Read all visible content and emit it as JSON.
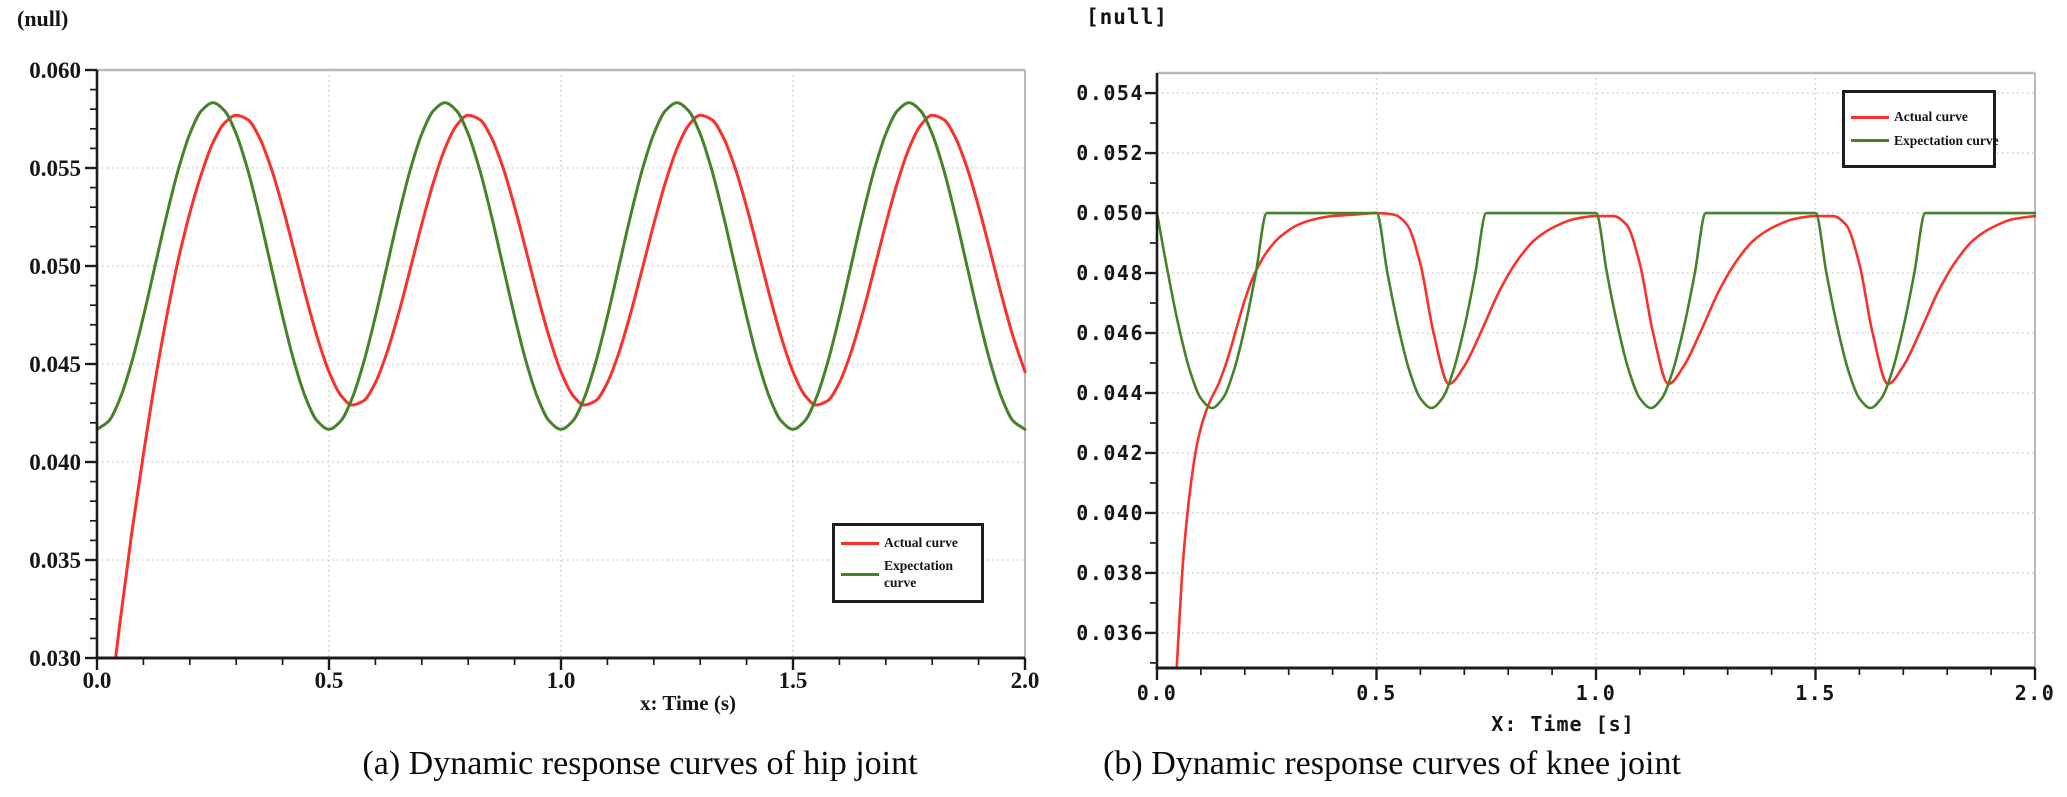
{
  "colors": {
    "actual": "#f8322b",
    "expectation": "#45832a",
    "grid": "#c8c8c8",
    "border": "#b9b9b9",
    "axis": "#1c1c1c",
    "text": "#151515"
  },
  "chart_data": [
    {
      "id": "hip",
      "type": "line",
      "title": "(null)",
      "xlabel": "x: Time (s)",
      "ylabel": "",
      "caption": "(a) Dynamic response curves of hip joint",
      "xlim": [
        0,
        2
      ],
      "ylim": [
        0.03,
        0.06
      ],
      "grid": "dotted",
      "x_ticks": {
        "values": [
          0,
          0.5,
          1.0,
          1.5,
          2.0
        ],
        "labels": [
          "0.0",
          "0.5",
          "1.0",
          "1.5",
          "2.0"
        ]
      },
      "y_ticks": {
        "values": [
          0.06,
          0.055,
          0.05,
          0.045,
          0.04,
          0.035,
          0.03
        ],
        "labels": [
          "0.060",
          "0.055",
          "0.050",
          "0.045",
          "0.040",
          "0.035",
          "0.030"
        ]
      },
      "x_minor_step": 0.1,
      "y_minor_step": 0.001,
      "legend": {
        "position": "bottom-right",
        "items": [
          {
            "label": "Actual curve"
          },
          {
            "label": "Expectation curve"
          }
        ]
      },
      "series": [
        {
          "name": "Actual curve",
          "colorKey": "actual",
          "points": [
            [
              0.04,
              0.03
            ],
            [
              0.05,
              0.0319
            ],
            [
              0.075,
              0.0364
            ],
            [
              0.1,
              0.0404
            ],
            [
              0.125,
              0.0441
            ],
            [
              0.15,
              0.0474
            ],
            [
              0.175,
              0.0503
            ],
            [
              0.2,
              0.0527
            ],
            [
              0.225,
              0.0547
            ],
            [
              0.25,
              0.0563
            ],
            [
              0.275,
              0.0573
            ]
          ],
          "x0": 0.3,
          "dx": 0.025,
          "y": [
            0.05769,
            0.05747,
            0.05655,
            0.05502,
            0.05302,
            0.05076,
            0.04846,
            0.04634,
            0.0446,
            0.04342,
            0.04291,
            0.04313,
            0.04405,
            0.04559,
            0.04758,
            0.04984,
            0.05214,
            0.05426,
            0.056,
            0.05718,
            0.05769,
            0.05747,
            0.05655,
            0.05502,
            0.05302,
            0.05076,
            0.04846,
            0.04634,
            0.0446,
            0.04342,
            0.04291,
            0.04313,
            0.04405,
            0.04559,
            0.04758,
            0.04984,
            0.05214,
            0.05426,
            0.056,
            0.05718,
            0.05769,
            0.05747,
            0.05655,
            0.05502,
            0.05302,
            0.05076,
            0.04846,
            0.04634,
            0.0446,
            0.04342,
            0.04291,
            0.04313,
            0.04405,
            0.04559,
            0.04758,
            0.04984,
            0.05214,
            0.05426,
            0.056,
            0.05718,
            0.05769,
            0.05747,
            0.05655,
            0.05502,
            0.05302,
            0.05076,
            0.04846,
            0.04634,
            0.0446
          ]
        },
        {
          "name": "Expectation curve",
          "colorKey": "expectation",
          "x0": 0,
          "dx": 0.025,
          "y": [
            0.04167,
            0.04208,
            0.04326,
            0.0451,
            0.04743,
            0.05,
            0.05257,
            0.0549,
            0.05674,
            0.05792,
            0.05833,
            0.05792,
            0.05674,
            0.0549,
            0.05257,
            0.05,
            0.04743,
            0.0451,
            0.04326,
            0.04208,
            0.04167,
            0.04208,
            0.04326,
            0.0451,
            0.04743,
            0.05,
            0.05257,
            0.0549,
            0.05674,
            0.05792,
            0.05833,
            0.05792,
            0.05674,
            0.0549,
            0.05257,
            0.05,
            0.04743,
            0.0451,
            0.04326,
            0.04208,
            0.04167,
            0.04208,
            0.04326,
            0.0451,
            0.04743,
            0.05,
            0.05257,
            0.0549,
            0.05674,
            0.05792,
            0.05833,
            0.05792,
            0.05674,
            0.0549,
            0.05257,
            0.05,
            0.04743,
            0.0451,
            0.04326,
            0.04208,
            0.04167,
            0.04208,
            0.04326,
            0.0451,
            0.04743,
            0.05,
            0.05257,
            0.0549,
            0.05674,
            0.05792,
            0.05833,
            0.05792,
            0.05674,
            0.0549,
            0.05257,
            0.05,
            0.04743,
            0.0451,
            0.04326,
            0.04208,
            0.04167
          ]
        }
      ]
    },
    {
      "id": "knee",
      "type": "line",
      "title": "[null]",
      "xlabel": "X: Time [s]",
      "ylabel": "",
      "caption": "(b) Dynamic response curves of knee joint",
      "xlim": [
        0,
        2
      ],
      "ylim": [
        0.03483,
        0.05467
      ],
      "grid": "dotted",
      "x_ticks": {
        "values": [
          0,
          0.5,
          1.0,
          1.5,
          2.0
        ],
        "labels": [
          "0.0",
          "0.5",
          "1.0",
          "1.5",
          "2.0"
        ]
      },
      "y_ticks": {
        "values": [
          0.054,
          0.052,
          0.05,
          0.048,
          0.046,
          0.044,
          0.042,
          0.04,
          0.038,
          0.036
        ],
        "labels": [
          "0.054",
          "0.052",
          "0.050",
          "0.048",
          "0.046",
          "0.044",
          "0.042",
          "0.040",
          "0.038",
          "0.036"
        ]
      },
      "x_minor_step": 0.1,
      "y_minor_step": 0.001,
      "legend": {
        "position": "top-right",
        "items": [
          {
            "label": "Actual curve"
          },
          {
            "label": "Expectation curve"
          }
        ]
      },
      "series": [
        {
          "name": "Actual curve",
          "colorKey": "actual",
          "points": [
            [
              0.045,
              0.0349
            ],
            [
              0.06,
              0.0385
            ],
            [
              0.075,
              0.0407
            ],
            [
              0.09,
              0.0422
            ],
            [
              0.105,
              0.0431
            ],
            [
              0.12,
              0.0437
            ],
            [
              0.14,
              0.0443
            ],
            [
              0.16,
              0.0451
            ],
            [
              0.18,
              0.0461
            ],
            [
              0.2,
              0.0471
            ],
            [
              0.22,
              0.0479
            ],
            [
              0.25,
              0.0487
            ],
            [
              0.28,
              0.0492
            ],
            [
              0.32,
              0.0496
            ],
            [
              0.36,
              0.0498
            ],
            [
              0.4,
              0.0499
            ],
            [
              0.45,
              0.04995
            ],
            [
              0.5,
              0.05
            ],
            [
              0.54,
              0.04995
            ],
            [
              0.57,
              0.0496
            ],
            [
              0.6,
              0.0483
            ],
            [
              0.63,
              0.046
            ],
            [
              0.665,
              0.0443
            ],
            [
              0.7,
              0.0449
            ],
            [
              0.74,
              0.0461
            ],
            [
              0.78,
              0.0474
            ],
            [
              0.82,
              0.0484
            ],
            [
              0.86,
              0.0491
            ],
            [
              0.9,
              0.0495
            ],
            [
              0.95,
              0.0498
            ],
            [
              1.0,
              0.0499
            ],
            [
              1.04,
              0.0499
            ],
            [
              1.07,
              0.0496
            ],
            [
              1.1,
              0.0483
            ],
            [
              1.13,
              0.046
            ],
            [
              1.165,
              0.0443
            ],
            [
              1.2,
              0.0449
            ],
            [
              1.24,
              0.0461
            ],
            [
              1.28,
              0.0474
            ],
            [
              1.32,
              0.0484
            ],
            [
              1.36,
              0.0491
            ],
            [
              1.4,
              0.0495
            ],
            [
              1.45,
              0.0498
            ],
            [
              1.5,
              0.0499
            ],
            [
              1.54,
              0.0499
            ],
            [
              1.57,
              0.0496
            ],
            [
              1.6,
              0.0483
            ],
            [
              1.63,
              0.046
            ],
            [
              1.665,
              0.0443
            ],
            [
              1.7,
              0.0449
            ],
            [
              1.74,
              0.0461
            ],
            [
              1.78,
              0.0474
            ],
            [
              1.82,
              0.0484
            ],
            [
              1.86,
              0.0491
            ],
            [
              1.9,
              0.0495
            ],
            [
              1.95,
              0.0498
            ],
            [
              2.0,
              0.0499
            ]
          ]
        },
        {
          "name": "Expectation curve",
          "colorKey": "expectation",
          "points": [
            [
              0,
              0.05
            ],
            [
              0.025,
              0.04799
            ],
            [
              0.05,
              0.04618
            ],
            [
              0.075,
              0.04474
            ],
            [
              0.1,
              0.04382
            ],
            [
              0.125,
              0.0435
            ],
            [
              0.15,
              0.04382
            ],
            [
              0.175,
              0.04474
            ],
            [
              0.2,
              0.04618
            ],
            [
              0.225,
              0.04799
            ],
            [
              0.25,
              0.05
            ],
            [
              0.3,
              0.05
            ],
            [
              0.35,
              0.05
            ],
            [
              0.4,
              0.05
            ],
            [
              0.45,
              0.05
            ],
            [
              0.5,
              0.05
            ],
            [
              0.525,
              0.04799
            ],
            [
              0.55,
              0.04618
            ],
            [
              0.575,
              0.04474
            ],
            [
              0.6,
              0.04382
            ],
            [
              0.625,
              0.0435
            ],
            [
              0.65,
              0.04382
            ],
            [
              0.675,
              0.04474
            ],
            [
              0.7,
              0.04618
            ],
            [
              0.725,
              0.04799
            ],
            [
              0.75,
              0.05
            ],
            [
              0.8,
              0.05
            ],
            [
              0.85,
              0.05
            ],
            [
              0.9,
              0.05
            ],
            [
              0.95,
              0.05
            ],
            [
              1.0,
              0.05
            ],
            [
              1.025,
              0.04799
            ],
            [
              1.05,
              0.04618
            ],
            [
              1.075,
              0.04474
            ],
            [
              1.1,
              0.04382
            ],
            [
              1.125,
              0.0435
            ],
            [
              1.15,
              0.04382
            ],
            [
              1.175,
              0.04474
            ],
            [
              1.2,
              0.04618
            ],
            [
              1.225,
              0.04799
            ],
            [
              1.25,
              0.05
            ],
            [
              1.3,
              0.05
            ],
            [
              1.35,
              0.05
            ],
            [
              1.4,
              0.05
            ],
            [
              1.45,
              0.05
            ],
            [
              1.5,
              0.05
            ],
            [
              1.525,
              0.04799
            ],
            [
              1.55,
              0.04618
            ],
            [
              1.575,
              0.04474
            ],
            [
              1.6,
              0.04382
            ],
            [
              1.625,
              0.0435
            ],
            [
              1.65,
              0.04382
            ],
            [
              1.675,
              0.04474
            ],
            [
              1.7,
              0.04618
            ],
            [
              1.725,
              0.04799
            ],
            [
              1.75,
              0.05
            ],
            [
              1.8,
              0.05
            ],
            [
              1.85,
              0.05
            ],
            [
              1.9,
              0.05
            ],
            [
              1.95,
              0.05
            ],
            [
              2.0,
              0.05
            ]
          ]
        }
      ]
    }
  ]
}
